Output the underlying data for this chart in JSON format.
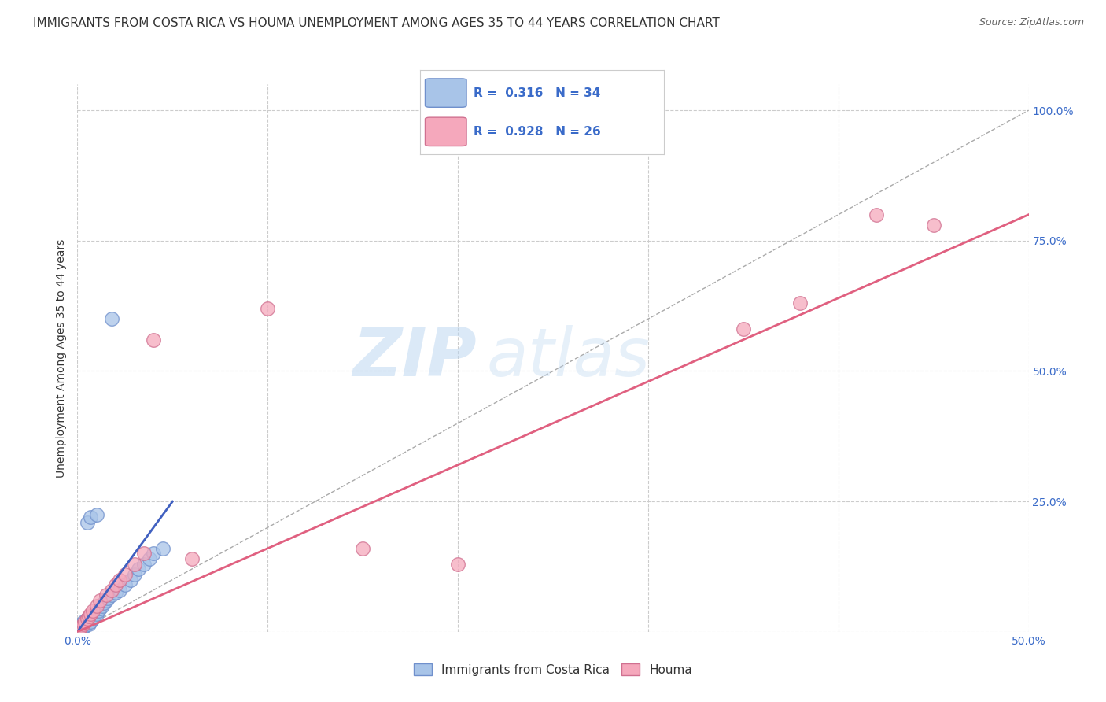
{
  "title": "IMMIGRANTS FROM COSTA RICA VS HOUMA UNEMPLOYMENT AMONG AGES 35 TO 44 YEARS CORRELATION CHART",
  "source": "Source: ZipAtlas.com",
  "ylabel": "Unemployment Among Ages 35 to 44 years",
  "xlim": [
    0.0,
    0.5
  ],
  "ylim": [
    0.0,
    1.05
  ],
  "ytick_values": [
    0.0,
    0.25,
    0.5,
    0.75,
    1.0
  ],
  "xtick_values": [
    0.0,
    0.1,
    0.2,
    0.3,
    0.4,
    0.5
  ],
  "right_ytick_labels": [
    "100.0%",
    "75.0%",
    "50.0%",
    "25.0%"
  ],
  "right_ytick_values": [
    1.0,
    0.75,
    0.5,
    0.25
  ],
  "watermark": "ZIPatlas",
  "blue_color": "#a8c4e8",
  "pink_color": "#f5a8bc",
  "blue_edge": "#7090cc",
  "pink_edge": "#d07090",
  "blue_line_color": "#4060c0",
  "pink_line_color": "#e06080",
  "title_fontsize": 11,
  "axis_label_fontsize": 10,
  "tick_label_fontsize": 10,
  "blue_scatter_x": [
    0.001,
    0.002,
    0.002,
    0.003,
    0.003,
    0.004,
    0.005,
    0.005,
    0.006,
    0.007,
    0.008,
    0.009,
    0.01,
    0.011,
    0.012,
    0.013,
    0.014,
    0.015,
    0.016,
    0.018,
    0.02,
    0.022,
    0.025,
    0.028,
    0.03,
    0.032,
    0.035,
    0.038,
    0.04,
    0.045,
    0.005,
    0.007,
    0.01,
    0.018
  ],
  "blue_scatter_y": [
    0.005,
    0.01,
    0.015,
    0.02,
    0.008,
    0.012,
    0.018,
    0.025,
    0.015,
    0.02,
    0.025,
    0.03,
    0.035,
    0.04,
    0.045,
    0.05,
    0.055,
    0.06,
    0.065,
    0.07,
    0.075,
    0.08,
    0.09,
    0.1,
    0.11,
    0.12,
    0.13,
    0.14,
    0.15,
    0.16,
    0.21,
    0.22,
    0.225,
    0.6
  ],
  "pink_scatter_x": [
    0.001,
    0.002,
    0.003,
    0.004,
    0.005,
    0.006,
    0.007,
    0.008,
    0.01,
    0.012,
    0.015,
    0.018,
    0.02,
    0.022,
    0.025,
    0.03,
    0.035,
    0.15,
    0.2,
    0.35,
    0.38,
    0.42,
    0.45,
    0.06,
    0.1,
    0.04
  ],
  "pink_scatter_y": [
    0.005,
    0.01,
    0.015,
    0.02,
    0.025,
    0.03,
    0.035,
    0.04,
    0.05,
    0.06,
    0.07,
    0.08,
    0.09,
    0.1,
    0.11,
    0.13,
    0.15,
    0.16,
    0.13,
    0.58,
    0.63,
    0.8,
    0.78,
    0.14,
    0.62,
    0.56
  ],
  "blue_line_x": [
    0.0,
    0.05
  ],
  "blue_line_y": [
    0.0,
    0.25
  ],
  "pink_line_x": [
    0.0,
    0.5
  ],
  "pink_line_y": [
    0.0,
    0.8
  ],
  "diag_line_x": [
    0.0,
    0.5
  ],
  "diag_line_y": [
    0.0,
    1.0
  ],
  "background_color": "#ffffff",
  "grid_color": "#cccccc"
}
